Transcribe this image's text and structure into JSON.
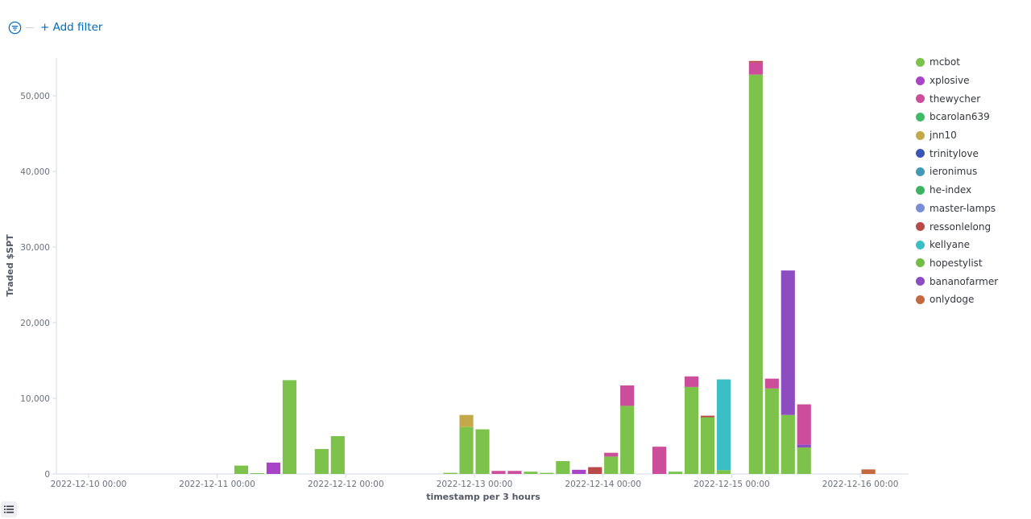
{
  "filter_bar": {
    "add_filter_label": "+ Add filter",
    "icons": {
      "filter": "filter-icon"
    }
  },
  "legend_toggle_icon": "list-icon",
  "chart_data": {
    "type": "bar",
    "stacked": true,
    "xlabel": "timestamp per 3 hours",
    "ylabel": "Traded $SPT",
    "ylim": [
      0,
      55000
    ],
    "yticks": [
      0,
      10000,
      20000,
      30000,
      40000,
      50000
    ],
    "ytick_labels": [
      "0",
      "10,000",
      "20,000",
      "30,000",
      "40,000",
      "50,000"
    ],
    "xlim": [
      "2022-12-09 18:00",
      "2022-12-16 09:00"
    ],
    "xticks": [
      "2022-12-10 00:00",
      "2022-12-11 00:00",
      "2022-12-12 00:00",
      "2022-12-13 00:00",
      "2022-12-14 00:00",
      "2022-12-15 00:00",
      "2022-12-16 00:00"
    ],
    "bar_interval_hours": 3,
    "grid": false,
    "legend_position": "right",
    "series": [
      {
        "name": "mcbot",
        "color": "#7dc24b"
      },
      {
        "name": "xplosive",
        "color": "#a944c9"
      },
      {
        "name": "thewycher",
        "color": "#cc4e9b"
      },
      {
        "name": "bcarolan639",
        "color": "#3fbb68"
      },
      {
        "name": "jnn10",
        "color": "#c4a94a"
      },
      {
        "name": "trinitylove",
        "color": "#3a55b8"
      },
      {
        "name": "ieronimus",
        "color": "#4199b5"
      },
      {
        "name": "he-index",
        "color": "#3cb360"
      },
      {
        "name": "master-lamps",
        "color": "#7a8ed6"
      },
      {
        "name": "ressonlelong",
        "color": "#b84a4a"
      },
      {
        "name": "kellyane",
        "color": "#3bbfc6"
      },
      {
        "name": "hopestylist",
        "color": "#74bd44"
      },
      {
        "name": "bananofarmer",
        "color": "#8b4dc0"
      },
      {
        "name": "onlydoge",
        "color": "#c4683e"
      }
    ],
    "bars": [
      {
        "x": "2022-12-11 03:00",
        "segments": [
          {
            "series": "mcbot",
            "value": 1100
          }
        ]
      },
      {
        "x": "2022-12-11 06:00",
        "segments": [
          {
            "series": "mcbot",
            "value": 100
          }
        ]
      },
      {
        "x": "2022-12-11 09:00",
        "segments": [
          {
            "series": "xplosive",
            "value": 1500
          }
        ]
      },
      {
        "x": "2022-12-11 12:00",
        "segments": [
          {
            "series": "mcbot",
            "value": 12400
          }
        ]
      },
      {
        "x": "2022-12-11 18:00",
        "segments": [
          {
            "series": "mcbot",
            "value": 3300
          }
        ]
      },
      {
        "x": "2022-12-11 21:00",
        "segments": [
          {
            "series": "mcbot",
            "value": 5000
          }
        ]
      },
      {
        "x": "2022-12-12 18:00",
        "segments": [
          {
            "series": "mcbot",
            "value": 150
          }
        ]
      },
      {
        "x": "2022-12-12 21:00",
        "segments": [
          {
            "series": "mcbot",
            "value": 6200
          },
          {
            "series": "jnn10",
            "value": 1600
          }
        ]
      },
      {
        "x": "2022-12-13 00:00",
        "segments": [
          {
            "series": "mcbot",
            "value": 5900
          }
        ]
      },
      {
        "x": "2022-12-13 03:00",
        "segments": [
          {
            "series": "thewycher",
            "value": 400
          }
        ]
      },
      {
        "x": "2022-12-13 06:00",
        "segments": [
          {
            "series": "thewycher",
            "value": 400
          }
        ]
      },
      {
        "x": "2022-12-13 09:00",
        "segments": [
          {
            "series": "mcbot",
            "value": 300
          }
        ]
      },
      {
        "x": "2022-12-13 12:00",
        "segments": [
          {
            "series": "mcbot",
            "value": 150
          }
        ]
      },
      {
        "x": "2022-12-13 15:00",
        "segments": [
          {
            "series": "mcbot",
            "value": 1700
          }
        ]
      },
      {
        "x": "2022-12-13 18:00",
        "segments": [
          {
            "series": "xplosive",
            "value": 550
          }
        ]
      },
      {
        "x": "2022-12-13 21:00",
        "segments": [
          {
            "series": "ressonlelong",
            "value": 900
          }
        ]
      },
      {
        "x": "2022-12-14 00:00",
        "segments": [
          {
            "series": "mcbot",
            "value": 2300
          },
          {
            "series": "thewycher",
            "value": 500
          }
        ]
      },
      {
        "x": "2022-12-14 03:00",
        "segments": [
          {
            "series": "mcbot",
            "value": 9000
          },
          {
            "series": "thewycher",
            "value": 2700
          }
        ]
      },
      {
        "x": "2022-12-14 09:00",
        "segments": [
          {
            "series": "thewycher",
            "value": 3600
          }
        ]
      },
      {
        "x": "2022-12-14 12:00",
        "segments": [
          {
            "series": "mcbot",
            "value": 300
          }
        ]
      },
      {
        "x": "2022-12-14 15:00",
        "segments": [
          {
            "series": "mcbot",
            "value": 11500
          },
          {
            "series": "thewycher",
            "value": 1400
          }
        ]
      },
      {
        "x": "2022-12-14 18:00",
        "segments": [
          {
            "series": "mcbot",
            "value": 7500
          },
          {
            "series": "ressonlelong",
            "value": 200
          }
        ]
      },
      {
        "x": "2022-12-14 21:00",
        "segments": [
          {
            "series": "mcbot",
            "value": 500
          },
          {
            "series": "kellyane",
            "value": 12000
          }
        ]
      },
      {
        "x": "2022-12-15 03:00",
        "segments": [
          {
            "series": "mcbot",
            "value": 52800
          },
          {
            "series": "thewycher",
            "value": 1600
          },
          {
            "series": "ressonlelong",
            "value": 200
          }
        ]
      },
      {
        "x": "2022-12-15 06:00",
        "segments": [
          {
            "series": "mcbot",
            "value": 11300
          },
          {
            "series": "thewycher",
            "value": 1300
          }
        ]
      },
      {
        "x": "2022-12-15 09:00",
        "segments": [
          {
            "series": "mcbot",
            "value": 7800
          },
          {
            "series": "bananofarmer",
            "value": 19100
          }
        ]
      },
      {
        "x": "2022-12-15 12:00",
        "segments": [
          {
            "series": "mcbot",
            "value": 3500
          },
          {
            "series": "bananofarmer",
            "value": 400
          },
          {
            "series": "thewycher",
            "value": 5300
          }
        ]
      },
      {
        "x": "2022-12-16 00:00",
        "segments": [
          {
            "series": "onlydoge",
            "value": 600
          }
        ]
      }
    ]
  }
}
